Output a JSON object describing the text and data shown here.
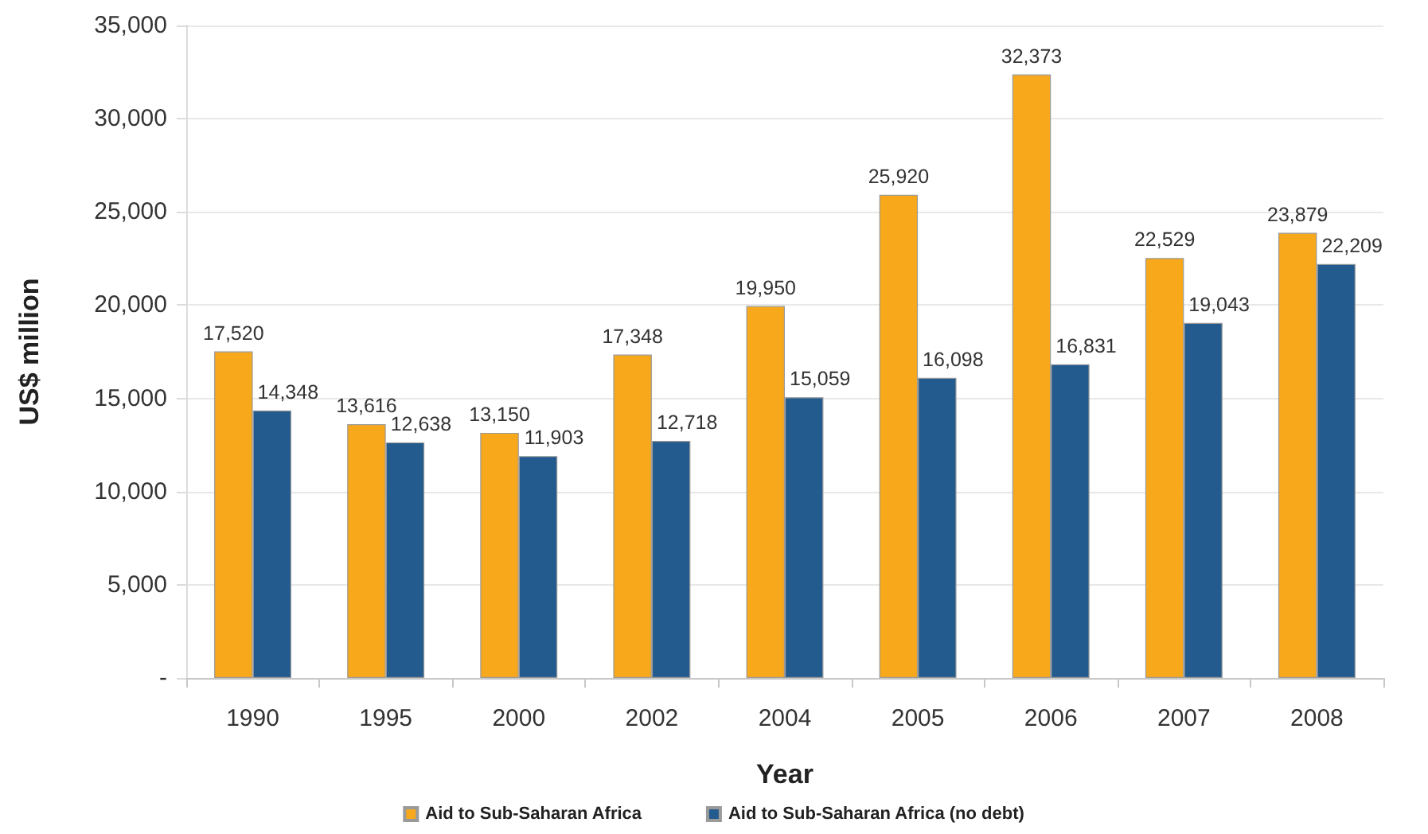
{
  "chart_data": {
    "type": "bar",
    "xlabel": "Year",
    "ylabel": "US$ million",
    "categories": [
      "1990",
      "1995",
      "2000",
      "2002",
      "2004",
      "2005",
      "2006",
      "2007",
      "2008"
    ],
    "series": [
      {
        "name": "Aid to Sub-Saharan Africa",
        "color": "#f7a81b",
        "values": [
          17520,
          13616,
          13150,
          17348,
          19950,
          25920,
          32373,
          22529,
          23879
        ],
        "value_labels": [
          "17,520",
          "13,616",
          "13,150",
          "17,348",
          "19,950",
          "25,920",
          "32,373",
          "22,529",
          "23,879"
        ]
      },
      {
        "name": "Aid to Sub-Saharan Africa (no debt)",
        "color": "#235b8e",
        "values": [
          14348,
          12638,
          11903,
          12718,
          15059,
          16098,
          16831,
          19043,
          22209
        ],
        "value_labels": [
          "14,348",
          "12,638",
          "11,903",
          "12,718",
          "15,059",
          "16,098",
          "16,831",
          "19,043",
          "22,209"
        ]
      }
    ],
    "ylim": [
      0,
      35000
    ],
    "yticks": [
      {
        "value": 0,
        "label": "-"
      },
      {
        "value": 5000,
        "label": "5,000"
      },
      {
        "value": 10000,
        "label": "10,000"
      },
      {
        "value": 15000,
        "label": "15,000"
      },
      {
        "value": 20000,
        "label": "20,000"
      },
      {
        "value": 25000,
        "label": "25,000"
      },
      {
        "value": 30000,
        "label": "30,000"
      },
      {
        "value": 35000,
        "label": "35,000"
      }
    ],
    "grid": "y",
    "legend": "bottom"
  }
}
